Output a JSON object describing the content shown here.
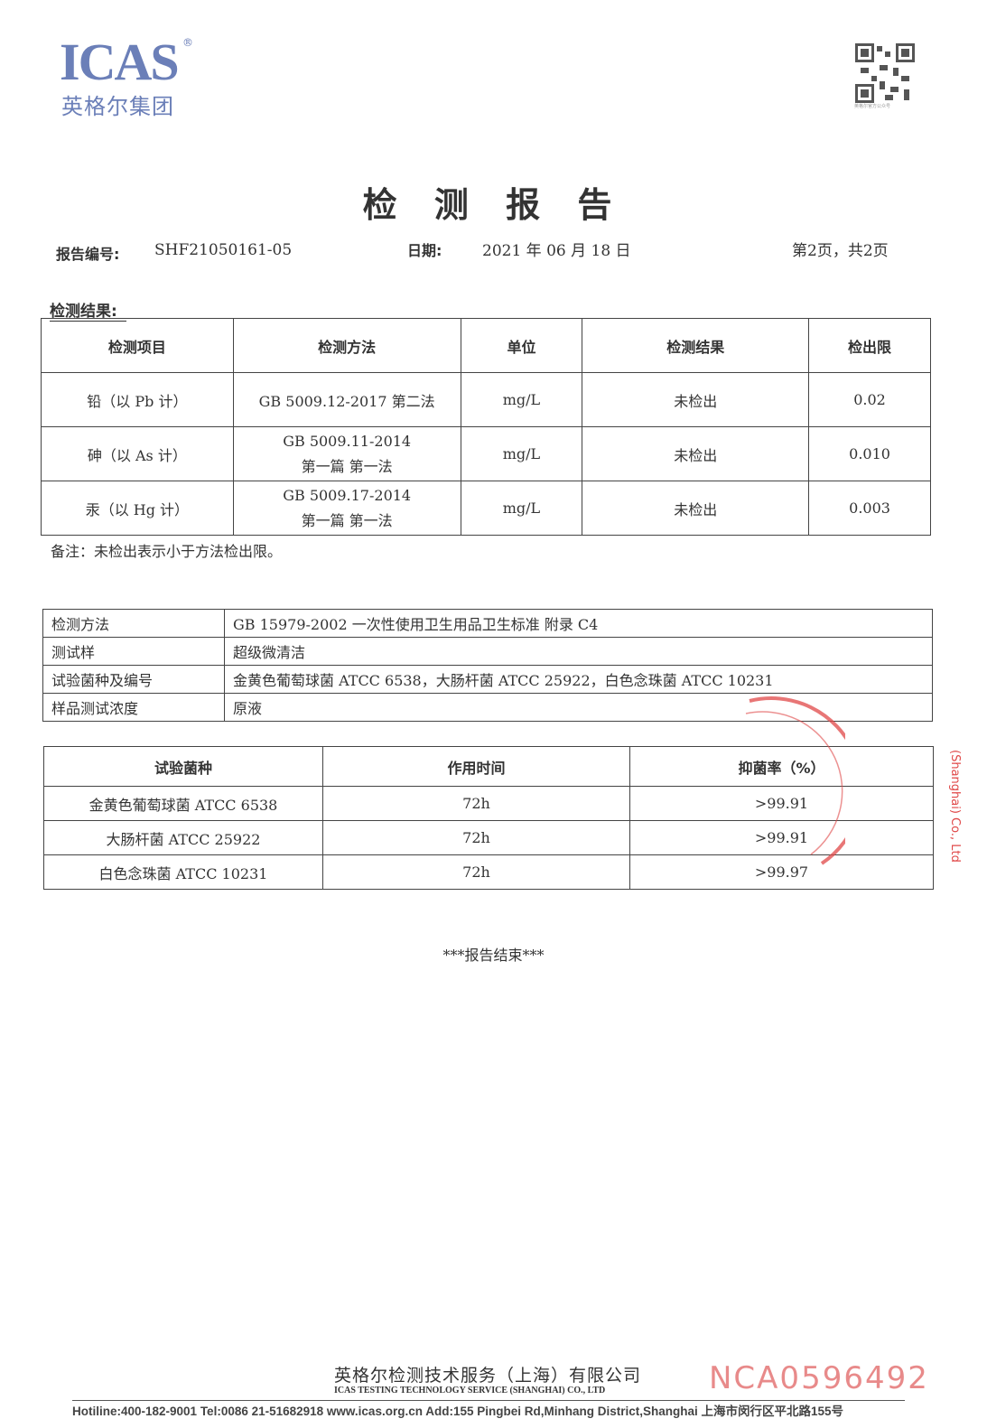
{
  "logo": {
    "en": "ICAS",
    "reg": "®",
    "cn": "英格尔集团"
  },
  "qr": {
    "icon": "qr-code",
    "caption": "英格尔官方公众号"
  },
  "title": "检 测 报 告",
  "meta": {
    "report_no_label": "报告编号:",
    "report_no": "SHF21050161-05",
    "date_label": "日期:",
    "date": "2021 年 06 月 18 日",
    "page": "第2页，共2页"
  },
  "section_label": "检测结果:",
  "results": {
    "headers": [
      "检测项目",
      "检测方法",
      "单位",
      "检测结果",
      "检出限"
    ],
    "rows": [
      {
        "item": "铅（以 Pb 计）",
        "method1": "GB 5009.12-2017 第二法",
        "method2": "",
        "unit": "mg/L",
        "result": "未检出",
        "limit": "0.02"
      },
      {
        "item": "砷（以 As 计）",
        "method1": "GB 5009.11-2014",
        "method2": "第一篇  第一法",
        "unit": "mg/L",
        "result": "未检出",
        "limit": "0.010"
      },
      {
        "item": "汞（以 Hg 计）",
        "method1": "GB 5009.17-2014",
        "method2": "第一篇  第一法",
        "unit": "mg/L",
        "result": "未检出",
        "limit": "0.003"
      }
    ]
  },
  "note": "备注：未检出表示小于方法检出限。",
  "info": [
    {
      "label": "检测方法",
      "value": "GB 15979-2002  一次性使用卫生用品卫生标准  附录 C4"
    },
    {
      "label": "测试样",
      "value": "超级微清洁"
    },
    {
      "label": "试验菌种及编号",
      "value": "金黄色葡萄球菌 ATCC 6538，大肠杆菌  ATCC 25922，白色念珠菌  ATCC 10231"
    },
    {
      "label": "样品测试浓度",
      "value": "原液"
    }
  ],
  "bacteria": {
    "headers": [
      "试验菌种",
      "作用时间",
      "抑菌率（%）"
    ],
    "rows": [
      {
        "strain": "金黄色葡萄球菌 ATCC 6538",
        "time": "72h",
        "rate": ">99.91"
      },
      {
        "strain": "大肠杆菌  ATCC 25922",
        "time": "72h",
        "rate": ">99.91"
      },
      {
        "strain": "白色念珠菌  ATCC 10231",
        "time": "72h",
        "rate": ">99.97"
      }
    ]
  },
  "end_marker": "***报告结束***",
  "stamp": {
    "text": "(Shanghai) Co., Ltd",
    "color": "#e04848"
  },
  "footer": {
    "company_cn": "英格尔检测技术服务（上海）有限公司",
    "company_en": "ICAS TESTING TECHNOLOGY SERVICE (SHANGHAI) CO., LTD",
    "serial": "NCA0596492",
    "contact": "Hotiline:400-182-9001  Tel:0086 21-51682918  www.icas.org.cn   Add:155 Pingbei Rd,Minhang District,Shanghai 上海市闵行区平北路155号"
  },
  "colors": {
    "logo": "#6b7fb8",
    "serial": "#e88a8a"
  }
}
